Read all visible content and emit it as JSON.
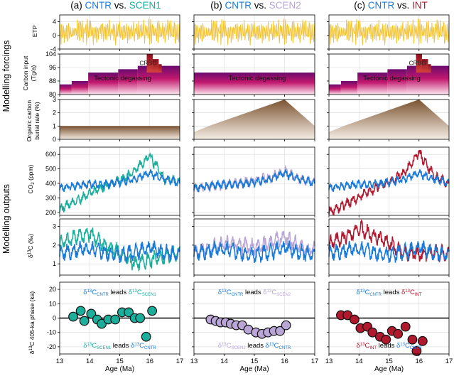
{
  "figure": {
    "columns": [
      {
        "letter": "(a)",
        "a": "CNTR",
        "vs": " vs. ",
        "b": "SCEN1",
        "b_color": "#1aae9b",
        "sub": "SCEN1"
      },
      {
        "letter": "(b)",
        "a": "CNTR",
        "vs": " vs. ",
        "b": "SCEN2",
        "b_color": "#b9a6d6",
        "sub": "SCEN2"
      },
      {
        "letter": "(c)",
        "a": "CNTR",
        "vs": " vs. ",
        "b": "INT",
        "b_color": "#b0182e",
        "sub": "INT"
      }
    ],
    "cntr_color": "#1a7ad9",
    "etp_color": "#f2c12e",
    "group_labels": {
      "forcings": "Modelling forcings",
      "outputs": "Modelling outputs"
    },
    "row_labels": {
      "etp": "ETP",
      "carbon_1": "Carbon input",
      "carbon_2": "(Tg/a)",
      "burial_1": "Organic carbon",
      "burial_2": "burial rate (%)",
      "co2_pre": "CO",
      "co2_sub": "2",
      "co2_post": " (ppm)",
      "d13c_sup": "13",
      "d13c_post": "C (‰)",
      "phase_sup": "13",
      "phase_post": "C 405-ka phase (ka)"
    },
    "annotations": {
      "tectonic": "Tectonic degassing",
      "crbg": "CRBG",
      "leads": "leads",
      "delta": "δ",
      "thirteen": "13",
      "c": "C",
      "cntr_sub": "CNTR"
    },
    "xlabel": "Age (Ma)",
    "xticks": [
      "13",
      "14",
      "15",
      "16",
      "17"
    ]
  },
  "chart_data": [
    {
      "type": "line",
      "panel": "ETP",
      "ylim": [
        -4,
        6
      ],
      "yticks": [
        -4,
        0,
        4
      ],
      "xlim": [
        13,
        17
      ],
      "note": "orbital forcing oscillation, identical in all columns"
    },
    {
      "type": "area",
      "panel": "Carbon input (Tg/a)",
      "ylim": [
        80,
        104
      ],
      "yticks": [
        80,
        88,
        96,
        104
      ],
      "xlim": [
        13,
        17
      ],
      "steps_default": [
        {
          "x0": 13.0,
          "x1": 13.4,
          "y": 86
        },
        {
          "x0": 13.4,
          "x1": 13.95,
          "y": 88
        },
        {
          "x0": 13.95,
          "x1": 14.95,
          "y": 93
        },
        {
          "x0": 14.95,
          "x1": 15.6,
          "y": 95
        },
        {
          "x0": 15.6,
          "x1": 17.0,
          "y": 97
        }
      ],
      "steps_flat": [
        {
          "x0": 13.0,
          "x1": 17.0,
          "y": 93
        }
      ],
      "crbg": [
        {
          "x0": 15.9,
          "x1": 16.1,
          "y": 104
        },
        {
          "x0": 16.1,
          "x1": 16.3,
          "y": 101
        },
        {
          "x0": 16.3,
          "x1": 16.4,
          "y": 98
        }
      ]
    },
    {
      "type": "area",
      "panel": "Organic carbon burial rate (%)",
      "ylim": [
        0,
        3
      ],
      "yticks": [
        0,
        1,
        2,
        3
      ],
      "xlim": [
        13,
        17
      ],
      "flat": [
        [
          13,
          1
        ],
        [
          17,
          1
        ]
      ],
      "triangle": [
        [
          13,
          0.55
        ],
        [
          13.55,
          1.05
        ],
        [
          16.0,
          3.0
        ],
        [
          17,
          1.0
        ]
      ]
    },
    {
      "type": "line",
      "panel": "CO2 (ppm)",
      "ylim": [
        180,
        650
      ],
      "yticks": [
        200,
        300,
        400,
        500,
        600
      ],
      "xlim": [
        13,
        17
      ],
      "series": [
        {
          "name": "CNTR",
          "x": [
            13,
            13.5,
            14,
            14.5,
            15,
            15.5,
            16,
            16.5,
            17
          ],
          "values": [
            370,
            385,
            395,
            395,
            405,
            430,
            470,
            430,
            400
          ]
        },
        {
          "name": "SCEN1",
          "x": [
            13,
            13.5,
            14,
            14.5,
            15,
            15.5,
            16,
            16.5,
            17
          ],
          "values": [
            225,
            275,
            330,
            380,
            420,
            485,
            590,
            430,
            415
          ]
        },
        {
          "name": "SCEN2",
          "x": [
            13,
            13.5,
            14,
            14.5,
            15,
            15.5,
            16,
            16.5,
            17
          ],
          "values": [
            365,
            380,
            390,
            400,
            420,
            445,
            480,
            435,
            410
          ]
        },
        {
          "name": "INT",
          "x": [
            13,
            13.5,
            14,
            14.5,
            15,
            15.5,
            16,
            16.5,
            17
          ],
          "values": [
            205,
            250,
            305,
            360,
            410,
            470,
            615,
            450,
            395
          ]
        }
      ]
    },
    {
      "type": "line",
      "panel": "d13C (‰)",
      "ylim": [
        0.4,
        3.4
      ],
      "yticks": [
        1,
        2,
        3
      ],
      "xlim": [
        13,
        17
      ],
      "series": [
        {
          "name": "CNTR",
          "x": [
            13,
            13.5,
            14,
            14.5,
            15,
            15.5,
            16,
            16.5,
            17
          ],
          "values": [
            1.6,
            1.7,
            1.8,
            1.6,
            1.5,
            1.6,
            1.9,
            1.6,
            1.5
          ]
        },
        {
          "name": "SCEN1",
          "x": [
            13,
            13.5,
            14,
            14.5,
            15,
            15.5,
            16,
            16.5,
            17
          ],
          "values": [
            2.1,
            2.4,
            2.6,
            2.0,
            1.6,
            1.0,
            1.2,
            1.4,
            1.6
          ]
        },
        {
          "name": "SCEN2",
          "x": [
            13,
            13.5,
            14,
            14.5,
            15,
            15.5,
            16,
            16.5,
            17
          ],
          "values": [
            1.6,
            1.8,
            2.1,
            2.0,
            1.9,
            2.1,
            2.5,
            1.9,
            1.7
          ]
        },
        {
          "name": "INT",
          "x": [
            13,
            13.5,
            14,
            14.5,
            15,
            15.5,
            16,
            16.5,
            17
          ],
          "values": [
            2.0,
            2.4,
            2.9,
            2.5,
            2.1,
            1.6,
            1.5,
            1.6,
            1.5
          ]
        }
      ]
    },
    {
      "type": "scatter",
      "panel": "d13C 405-ka phase (ka)",
      "ylim": [
        -25,
        25
      ],
      "yticks": [
        -20,
        -10,
        0,
        10,
        20
      ],
      "xlim": [
        13,
        17
      ],
      "series": [
        {
          "name": "SCEN1",
          "x": [
            13.45,
            13.7,
            13.82,
            14.05,
            14.25,
            14.4,
            14.62,
            14.85,
            15.08,
            15.3,
            15.5,
            15.68,
            15.88,
            16.08
          ],
          "values": [
            1,
            5,
            -2,
            3,
            -1,
            -4,
            -1,
            -1,
            4,
            4,
            0,
            0,
            -13,
            5
          ]
        },
        {
          "name": "SCEN2",
          "x": [
            13.55,
            13.72,
            13.88,
            14.05,
            14.22,
            14.4,
            14.6,
            14.8,
            15.05,
            15.25,
            15.45,
            15.65,
            15.85,
            16.05
          ],
          "values": [
            -1,
            -2,
            -3,
            -3,
            -4,
            -5,
            -5,
            -8,
            -10,
            -11,
            -10,
            -9,
            -9,
            -5
          ]
        },
        {
          "name": "INT",
          "x": [
            13.4,
            13.62,
            13.85,
            14.05,
            14.28,
            14.45,
            14.7,
            14.9,
            15.1,
            15.3,
            15.55,
            15.78,
            15.92,
            16.12
          ],
          "values": [
            2,
            2,
            -1,
            -7,
            -6,
            -10,
            -13,
            -15,
            -9,
            -11,
            -6,
            -15,
            -23,
            -16
          ]
        }
      ]
    }
  ]
}
